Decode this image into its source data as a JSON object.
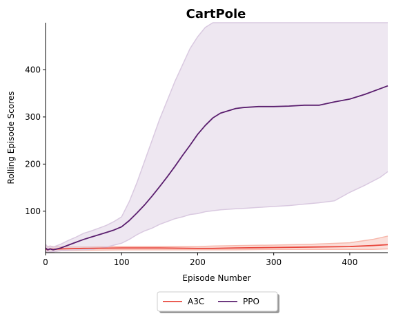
{
  "chart_data": {
    "type": "line",
    "title": "CartPole",
    "xlabel": "Episode Number",
    "ylabel": "Rolling Episode Scores",
    "xlim": [
      0,
      450
    ],
    "ylim": [
      12,
      500
    ],
    "xticks": [
      0,
      100,
      200,
      300,
      400
    ],
    "yticks": [
      100,
      200,
      300,
      400
    ],
    "grid": false,
    "legend_placement": "bottom-center",
    "series": [
      {
        "name": "A3C",
        "color": "#e8473c",
        "band_color": "#f7b9ad",
        "x": [
          0,
          3,
          6,
          10,
          20,
          50,
          100,
          150,
          200,
          220,
          250,
          300,
          350,
          400,
          430,
          450
        ],
        "y": [
          20,
          18,
          20,
          19,
          20,
          21,
          22,
          22,
          21,
          21,
          22,
          23,
          24,
          25,
          27,
          29
        ],
        "lower": [
          14,
          13,
          13,
          14,
          16,
          17,
          18,
          18,
          18,
          18,
          18,
          19,
          19,
          19,
          19,
          20
        ],
        "upper": [
          27,
          25,
          26,
          25,
          24,
          24,
          25,
          25,
          25,
          26,
          27,
          28,
          30,
          33,
          40,
          47
        ]
      },
      {
        "name": "PPO",
        "color": "#5a1e6e",
        "band_color": "#d9c9e0",
        "x": [
          0,
          3,
          6,
          10,
          20,
          30,
          40,
          50,
          60,
          70,
          80,
          90,
          100,
          110,
          120,
          130,
          140,
          150,
          160,
          170,
          180,
          190,
          200,
          210,
          220,
          230,
          240,
          250,
          260,
          280,
          300,
          320,
          340,
          360,
          380,
          400,
          420,
          440,
          450
        ],
        "y": [
          22,
          18,
          20,
          18,
          22,
          28,
          34,
          40,
          45,
          50,
          55,
          60,
          67,
          80,
          96,
          113,
          132,
          152,
          173,
          195,
          218,
          240,
          263,
          282,
          298,
          308,
          313,
          318,
          320,
          322,
          322,
          323,
          325,
          325,
          332,
          338,
          348,
          360,
          366
        ],
        "lower": [
          15,
          13,
          14,
          14,
          16,
          17,
          18,
          18,
          19,
          21,
          24,
          28,
          32,
          40,
          50,
          58,
          64,
          72,
          78,
          84,
          88,
          93,
          95,
          99,
          101,
          103,
          104,
          105,
          106,
          108,
          110,
          112,
          115,
          118,
          122,
          140,
          155,
          172,
          184
        ],
        "upper": [
          30,
          24,
          26,
          24,
          30,
          38,
          45,
          53,
          58,
          64,
          70,
          78,
          88,
          120,
          160,
          205,
          250,
          295,
          335,
          375,
          410,
          445,
          470,
          490,
          500,
          500,
          500,
          500,
          500,
          500,
          500,
          500,
          500,
          500,
          500,
          500,
          500,
          500,
          500
        ]
      }
    ]
  }
}
